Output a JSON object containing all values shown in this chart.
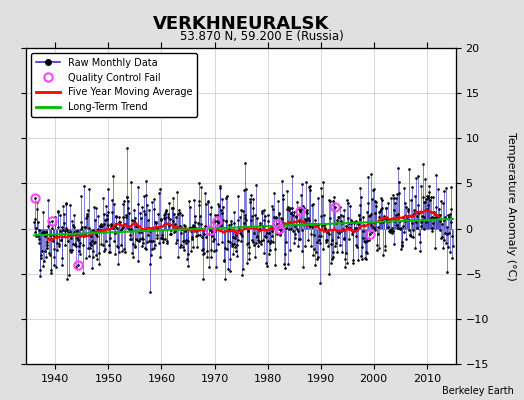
{
  "title": "VERKHNEURALSK",
  "subtitle": "53.870 N, 59.200 E (Russia)",
  "ylabel": "Temperature Anomaly (°C)",
  "attribution": "Berkeley Earth",
  "year_start": 1936,
  "year_end": 2014,
  "ylim": [
    -15,
    20
  ],
  "yticks": [
    -15,
    -10,
    -5,
    0,
    5,
    10,
    15,
    20
  ],
  "bg_color": "#e0e0e0",
  "plot_bg_color": "#ffffff",
  "grid_color": "#c8c8c8",
  "raw_line_color": "#3333bb",
  "raw_dot_color": "#000000",
  "qc_color": "#ff44ff",
  "ma_color": "#ff0000",
  "trend_color": "#00bb00",
  "seed": 42
}
